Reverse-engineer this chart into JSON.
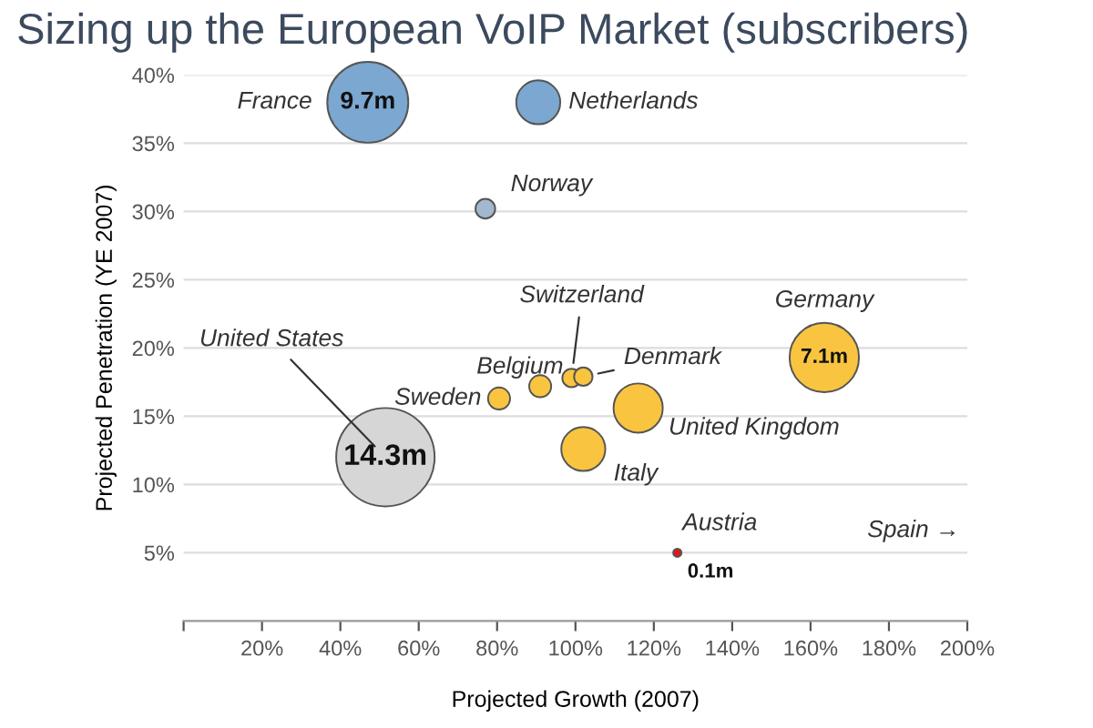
{
  "chart_data": {
    "type": "bubble",
    "title": "Sizing up the European VoIP Market (subscribers)",
    "xlabel": "Projected Growth (2007)",
    "ylabel": "Projected Penetration (YE 2007)",
    "xlim": [
      0,
      200
    ],
    "xticks": [
      {
        "value": 0,
        "label": null
      },
      {
        "value": 20,
        "label": "20%"
      },
      {
        "value": 40,
        "label": "40%"
      },
      {
        "value": 60,
        "label": "60%"
      },
      {
        "value": 80,
        "label": "80%"
      },
      {
        "value": 100,
        "label": "100%"
      },
      {
        "value": 120,
        "label": "120%"
      },
      {
        "value": 140,
        "label": "140%"
      },
      {
        "value": 160,
        "label": "160%"
      },
      {
        "value": 180,
        "label": "180%"
      },
      {
        "value": 200,
        "label": "200%"
      }
    ],
    "ylim": [
      0,
      40
    ],
    "yticks": [
      {
        "value": 5,
        "label": "5%"
      },
      {
        "value": 10,
        "label": "10%"
      },
      {
        "value": 15,
        "label": "15%"
      },
      {
        "value": 20,
        "label": "20%"
      },
      {
        "value": 25,
        "label": "25%"
      },
      {
        "value": 30,
        "label": "30%"
      },
      {
        "value": 35,
        "label": "35%"
      },
      {
        "value": 40,
        "label": "40%"
      }
    ],
    "grid": "y",
    "legend": false,
    "series": [
      {
        "name": "France",
        "color": "#7ba7d0",
        "x": [
          47
        ],
        "values": [
          38
        ],
        "sizes": [
          0.678
        ]
      },
      {
        "name": "Netherlands",
        "color": "#7ba7d0",
        "x": [
          90.5
        ],
        "values": [
          38
        ],
        "sizes": [
          0.2
        ]
      },
      {
        "name": "Norway",
        "color": "#a3b8d0",
        "x": [
          77
        ],
        "values": [
          30.2
        ],
        "sizes": [
          0.04
        ]
      },
      {
        "name": "United States",
        "color": "#d6d6d6",
        "x": [
          51.5
        ],
        "values": [
          12
        ],
        "sizes": [
          1
        ]
      },
      {
        "name": "Sweden",
        "color": "#f9c440",
        "x": [
          80.5
        ],
        "values": [
          16.3
        ],
        "sizes": [
          0.05
        ]
      },
      {
        "name": "Belgium",
        "color": "#f9c440",
        "x": [
          91
        ],
        "values": [
          17.2
        ],
        "sizes": [
          0.05
        ]
      },
      {
        "name": "Switzerland",
        "color": "#f9c440",
        "x": [
          99
        ],
        "values": [
          17.8
        ],
        "sizes": [
          0.035
        ]
      },
      {
        "name": "Denmark",
        "color": "#f9c440",
        "x": [
          102
        ],
        "values": [
          17.9
        ],
        "sizes": [
          0.035
        ]
      },
      {
        "name": "United Kingdom",
        "color": "#f9c440",
        "x": [
          116
        ],
        "values": [
          15.6
        ],
        "sizes": [
          0.25
        ]
      },
      {
        "name": "Italy",
        "color": "#f9c440",
        "x": [
          102
        ],
        "values": [
          12.6
        ],
        "sizes": [
          0.2
        ]
      },
      {
        "name": "Germany",
        "color": "#f9c440",
        "x": [
          163.5
        ],
        "values": [
          19.3
        ],
        "sizes": [
          0.497
        ]
      },
      {
        "name": "Austria",
        "color": "#e8141c",
        "x": [
          126
        ],
        "values": [
          5
        ],
        "sizes": [
          0.007
        ]
      }
    ],
    "annotations": [
      {
        "text": "9.7m",
        "x": 47,
        "y": 38
      },
      {
        "text": "14.3m",
        "x": 51.5,
        "y": 12
      },
      {
        "text": "7.1m",
        "x": 163.5,
        "y": 19.3
      },
      {
        "text": "0.1m",
        "x": 126,
        "y": 5
      },
      "Spain →"
    ]
  }
}
